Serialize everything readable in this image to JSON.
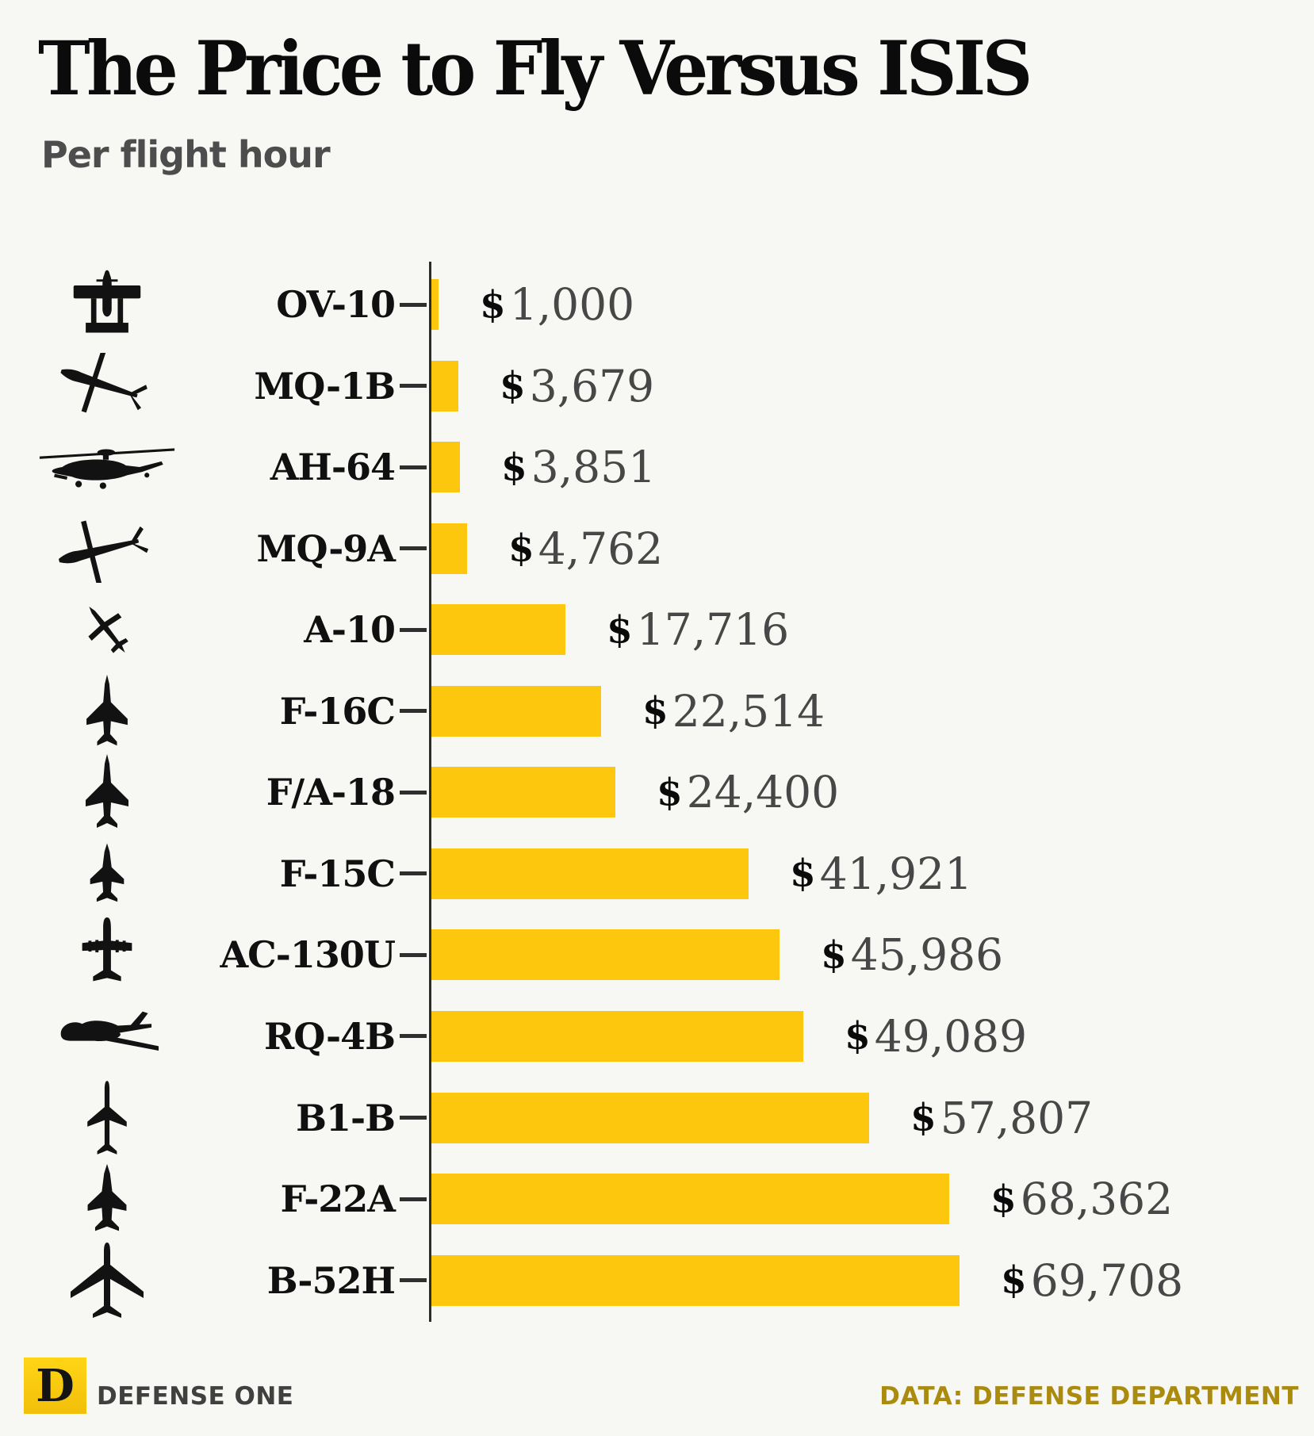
{
  "title": "The Price to Fly Versus ISIS",
  "subtitle": "Per flight hour",
  "footer": {
    "logo_letter": "D",
    "brand": "DEFENSE ONE",
    "source": "DATA: DEFENSE DEPARTMENT"
  },
  "colors": {
    "background": "#f7f7f4",
    "bar": "#fcc70d",
    "axis": "#2b2b2b",
    "label_text": "#101010",
    "value_dollar": "#0a0a0a",
    "value_digits": "#474747",
    "subtitle_text": "#4d4d4d",
    "brand_text": "#404040",
    "source_text": "#aa8b0d",
    "logo_yellow": "#f9c90f"
  },
  "chart_data": {
    "type": "bar",
    "orientation": "horizontal",
    "title": "The Price to Fly Versus ISIS",
    "subtitle": "Per flight hour",
    "unit": "USD per flight hour",
    "categories": [
      "OV-10",
      "MQ-1B",
      "AH-64",
      "MQ-9A",
      "A-10",
      "F-16C",
      "F/A-18",
      "F-15C",
      "AC-130U",
      "RQ-4B",
      "B1-B",
      "F-22A",
      "B-52H"
    ],
    "values": [
      1000,
      3679,
      3851,
      4762,
      17716,
      22514,
      24400,
      41921,
      45986,
      49089,
      57807,
      68362,
      69708
    ],
    "value_labels": [
      "$1,000",
      "$3,679",
      "$3,851",
      "$4,762",
      "$17,716",
      "$22,514",
      "$24,400",
      "$41,921",
      "$45,986",
      "$49,089",
      "$57,807",
      "$68,362",
      "$69,708"
    ],
    "icons": [
      "ov-10-front-icon",
      "mq-1b-drone-icon",
      "ah-64-helicopter-icon",
      "mq-9a-drone-icon",
      "a-10-jet-icon",
      "f-16c-jet-icon",
      "f-a-18-jet-icon",
      "f-15c-jet-icon",
      "ac-130u-plane-icon",
      "rq-4b-drone-icon",
      "b1-b-bomber-icon",
      "f-22a-jet-icon",
      "b-52h-bomber-icon"
    ],
    "xlim": [
      0,
      72000
    ],
    "grid": false,
    "legend": false
  }
}
